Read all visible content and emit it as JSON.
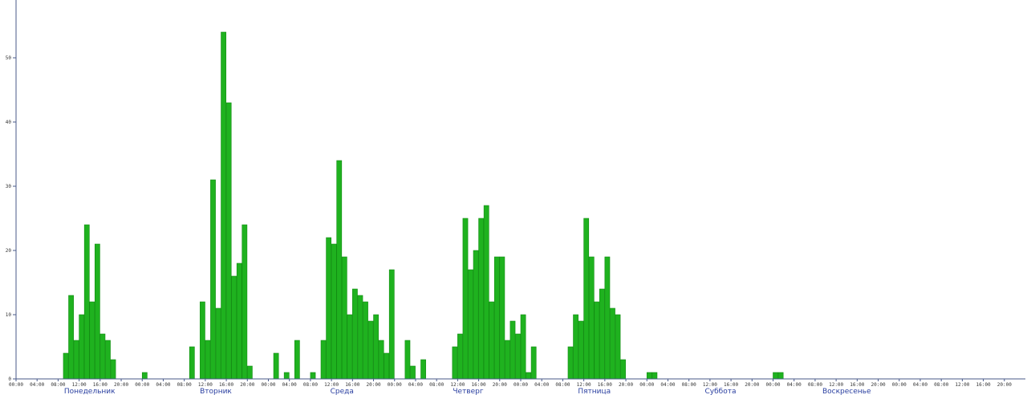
{
  "chart_data": {
    "type": "bar",
    "ylim": [
      0,
      55
    ],
    "yticks": [
      0,
      10,
      20,
      30,
      40,
      50
    ],
    "bar_color": "#1fb21f",
    "axis_color": "#4a5a8a",
    "day_label_color": "#2a3fa0",
    "days": [
      "Понедельник",
      "Вторник",
      "Среда",
      "Четверг",
      "Пятница",
      "Суббота",
      "Воскресенье"
    ],
    "hour_tick_labels": [
      "00:00",
      "04:00",
      "08:00",
      "12:00",
      "16:00",
      "20:00"
    ],
    "values": [
      0,
      0,
      0,
      0,
      0,
      0,
      0,
      0,
      0,
      4,
      13,
      6,
      10,
      24,
      12,
      21,
      7,
      6,
      3,
      0,
      0,
      0,
      0,
      0,
      1,
      0,
      0,
      0,
      0,
      0,
      0,
      0,
      0,
      5,
      0,
      12,
      6,
      31,
      11,
      54,
      43,
      16,
      18,
      24,
      2,
      0,
      0,
      0,
      0,
      4,
      0,
      1,
      0,
      6,
      0,
      0,
      1,
      0,
      6,
      22,
      21,
      34,
      19,
      10,
      14,
      13,
      12,
      9,
      10,
      6,
      4,
      17,
      0,
      0,
      6,
      2,
      0,
      3,
      0,
      0,
      0,
      0,
      0,
      5,
      7,
      25,
      17,
      20,
      25,
      27,
      12,
      19,
      19,
      6,
      9,
      7,
      10,
      1,
      5,
      0,
      0,
      0,
      0,
      0,
      0,
      5,
      10,
      9,
      25,
      19,
      12,
      14,
      19,
      11,
      10,
      3,
      0,
      0,
      0,
      0,
      1,
      1,
      0,
      0,
      0,
      0,
      0,
      0,
      0,
      0,
      0,
      0,
      0,
      0,
      0,
      0,
      0,
      0,
      0,
      0,
      0,
      0,
      0,
      0,
      1,
      1,
      0,
      0,
      0,
      0,
      0,
      0,
      0,
      0,
      0,
      0,
      0,
      0,
      0,
      0,
      0,
      0,
      0,
      0,
      0,
      0,
      0,
      0,
      0,
      0,
      0,
      0,
      0,
      0,
      0,
      0,
      0,
      0,
      0,
      0,
      0,
      0,
      0,
      0,
      0,
      0,
      0,
      0,
      0,
      0,
      0,
      0
    ]
  }
}
